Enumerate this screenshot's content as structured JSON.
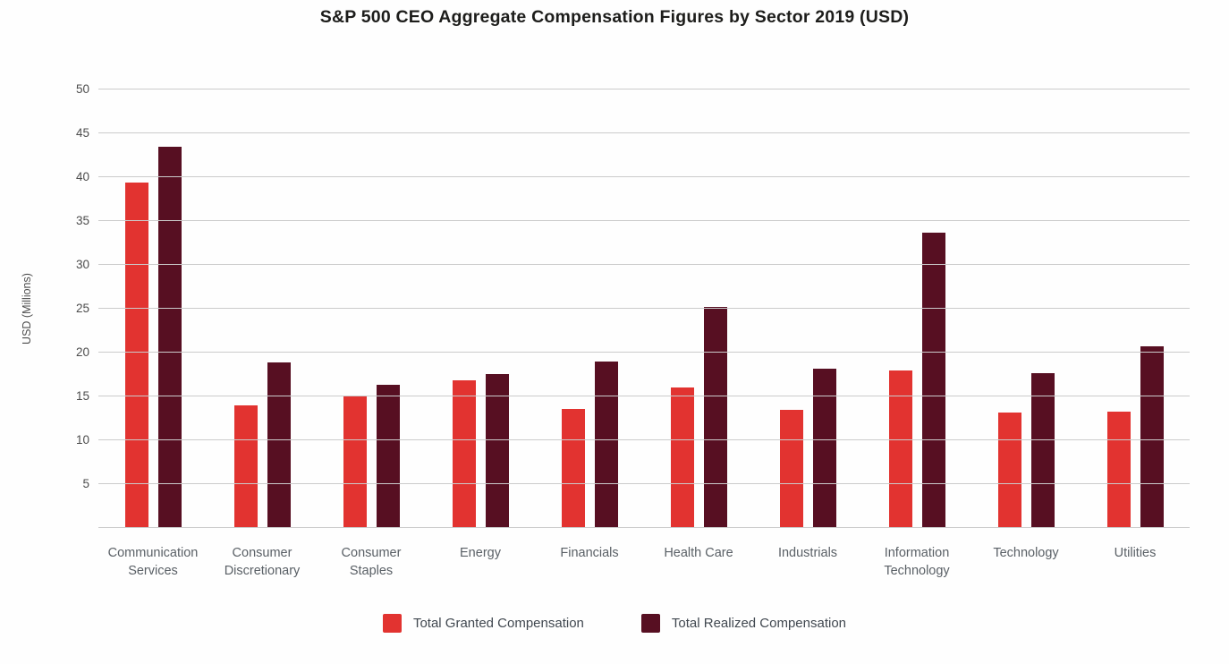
{
  "page": {
    "title": "S&P 500 CEO Aggregate Compensation Figures by Sector 2019 (USD)"
  },
  "chart_data": {
    "type": "bar",
    "title": "S&P 500 CEO Aggregate Compensation Figures by Sector 2019 (USD)",
    "xlabel": "",
    "ylabel": "USD (Millions)",
    "ylim": [
      0,
      50
    ],
    "ytick_step": 5,
    "yticks": [
      5,
      10,
      15,
      20,
      25,
      30,
      35,
      40,
      45,
      50
    ],
    "grid": true,
    "legend_position": "bottom",
    "categories": [
      "Communication Services",
      "Consumer Discretionary",
      "Consumer Staples",
      "Energy",
      "Financials",
      "Health Care",
      "Industrials",
      "Information Technology",
      "Technology",
      "Utilities"
    ],
    "series": [
      {
        "name": "Total Granted Compensation",
        "color": "#e23330",
        "values": [
          39.4,
          14.0,
          15.1,
          16.8,
          13.6,
          16.0,
          13.5,
          18.0,
          13.2,
          13.3
        ]
      },
      {
        "name": "Total Realized Compensation",
        "color": "#570f22",
        "values": [
          43.5,
          18.9,
          16.3,
          17.6,
          19.0,
          25.2,
          18.2,
          33.7,
          17.7,
          20.7
        ]
      }
    ]
  },
  "colors": {
    "background": "#fefefe",
    "gridline": "#cbcbcb",
    "axis_text": "#4c4c4c",
    "category_text": "#5a6066",
    "legend_text": "#414850",
    "title_text": "#1d1d1b"
  }
}
